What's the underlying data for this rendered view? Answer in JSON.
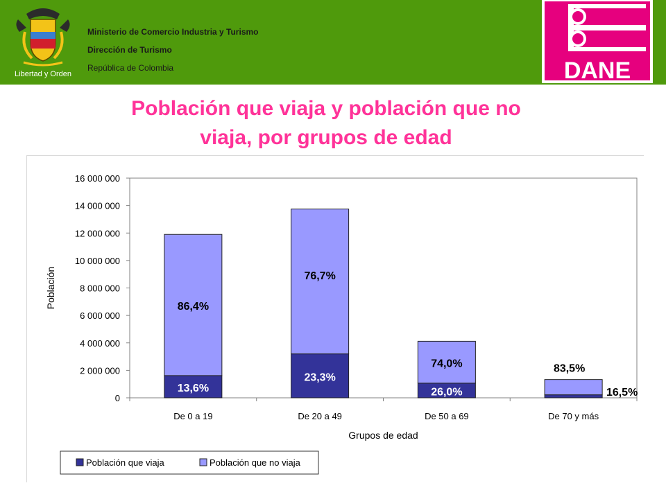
{
  "header": {
    "logo_left_caption": "Libertad y Orden",
    "ministry_lines": [
      "Ministerio de Comercio Industria y Turismo",
      "Dirección de Turismo",
      "República de Colombia"
    ],
    "logo_right_text": "DANE",
    "colors": {
      "bar": "#4f9a0c",
      "dane_magenta": "#e6007e"
    }
  },
  "title_lines": [
    "Población que viaja y población que no",
    "viaja, por grupos de edad"
  ],
  "chart_data": {
    "type": "bar",
    "stacked": true,
    "title": "",
    "xlabel": "Grupos de edad",
    "ylabel": "Población",
    "ylim": [
      0,
      16000000
    ],
    "yticks": [
      0,
      2000000,
      4000000,
      6000000,
      8000000,
      10000000,
      12000000,
      14000000,
      16000000
    ],
    "ytick_labels": [
      "0",
      "2 000 000",
      "4 000 000",
      "6 000 000",
      "8 000 000",
      "10 000 000",
      "12 000 000",
      "14 000 000",
      "16 000 000"
    ],
    "categories": [
      "De 0 a 19",
      "De 20 a 49",
      "De 50 a 69",
      "De 70 y más"
    ],
    "series": [
      {
        "name": "Población que viaja",
        "color": "#333399",
        "values": [
          1620000,
          3200000,
          1070000,
          220000
        ],
        "labels": [
          "13,6%",
          "23,3%",
          "26,0%",
          "16,5%"
        ]
      },
      {
        "name": "Población que no viaja",
        "color": "#9999ff",
        "values": [
          10280000,
          10550000,
          3050000,
          1110000
        ],
        "labels": [
          "86,4%",
          "76,7%",
          "74,0%",
          "83,5%"
        ]
      }
    ],
    "grid": false,
    "legend_position": "bottom-left"
  }
}
